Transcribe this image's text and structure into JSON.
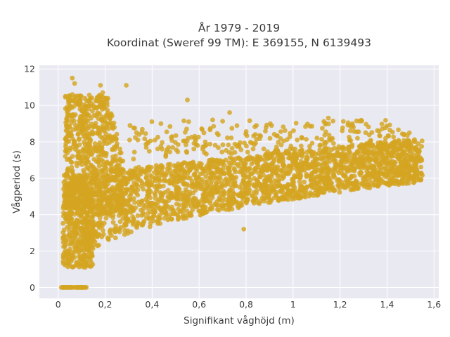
{
  "chart_data": {
    "type": "scatter",
    "title": [
      "År 1979 - 2019",
      "Koordinat (Sweref 99 TM): E 369155, N 6139493"
    ],
    "xlabel": "Signifikant våghöjd (m)",
    "ylabel": "Vågperiod (s)",
    "xlim": [
      -0.08,
      1.62
    ],
    "ylim": [
      -0.6,
      12.2
    ],
    "xticks": [
      0,
      0.2,
      0.4,
      0.6,
      0.8,
      1,
      1.2,
      1.4,
      1.6
    ],
    "xtick_labels": [
      "0",
      "0,2",
      "0,4",
      "0,6",
      "0,8",
      "1",
      "1,2",
      "1,4",
      "1,6"
    ],
    "yticks": [
      0,
      2,
      4,
      6,
      8,
      10,
      12
    ],
    "ytick_labels": [
      "0",
      "2",
      "4",
      "6",
      "8",
      "10",
      "12"
    ],
    "grid": true,
    "marker_color": "#D4A521",
    "background_color": "#E9E9F2",
    "point_density_bands": [
      {
        "x": [
          0.0,
          0.12
        ],
        "y": [
          0,
          0
        ]
      },
      {
        "x": [
          0.02,
          0.15
        ],
        "y": [
          1.1,
          6.2
        ]
      },
      {
        "x": [
          0.03,
          0.33
        ],
        "y": [
          4.0,
          10.6
        ]
      },
      {
        "x": [
          0.1,
          1.55
        ],
        "y_lower_start": 1.3,
        "y_lower_end": 5.8,
        "y_upper_start": 6.3,
        "y_upper_end": 8.2
      }
    ],
    "outlier_points": [
      {
        "x": 0.06,
        "y": 11.5
      },
      {
        "x": 0.07,
        "y": 11.2
      },
      {
        "x": 0.18,
        "y": 11.1
      },
      {
        "x": 0.29,
        "y": 11.1
      },
      {
        "x": 0.19,
        "y": 10.7
      },
      {
        "x": 0.55,
        "y": 10.3
      },
      {
        "x": 0.73,
        "y": 9.6
      },
      {
        "x": 1.15,
        "y": 9.3
      },
      {
        "x": 0.79,
        "y": 3.2
      }
    ]
  }
}
